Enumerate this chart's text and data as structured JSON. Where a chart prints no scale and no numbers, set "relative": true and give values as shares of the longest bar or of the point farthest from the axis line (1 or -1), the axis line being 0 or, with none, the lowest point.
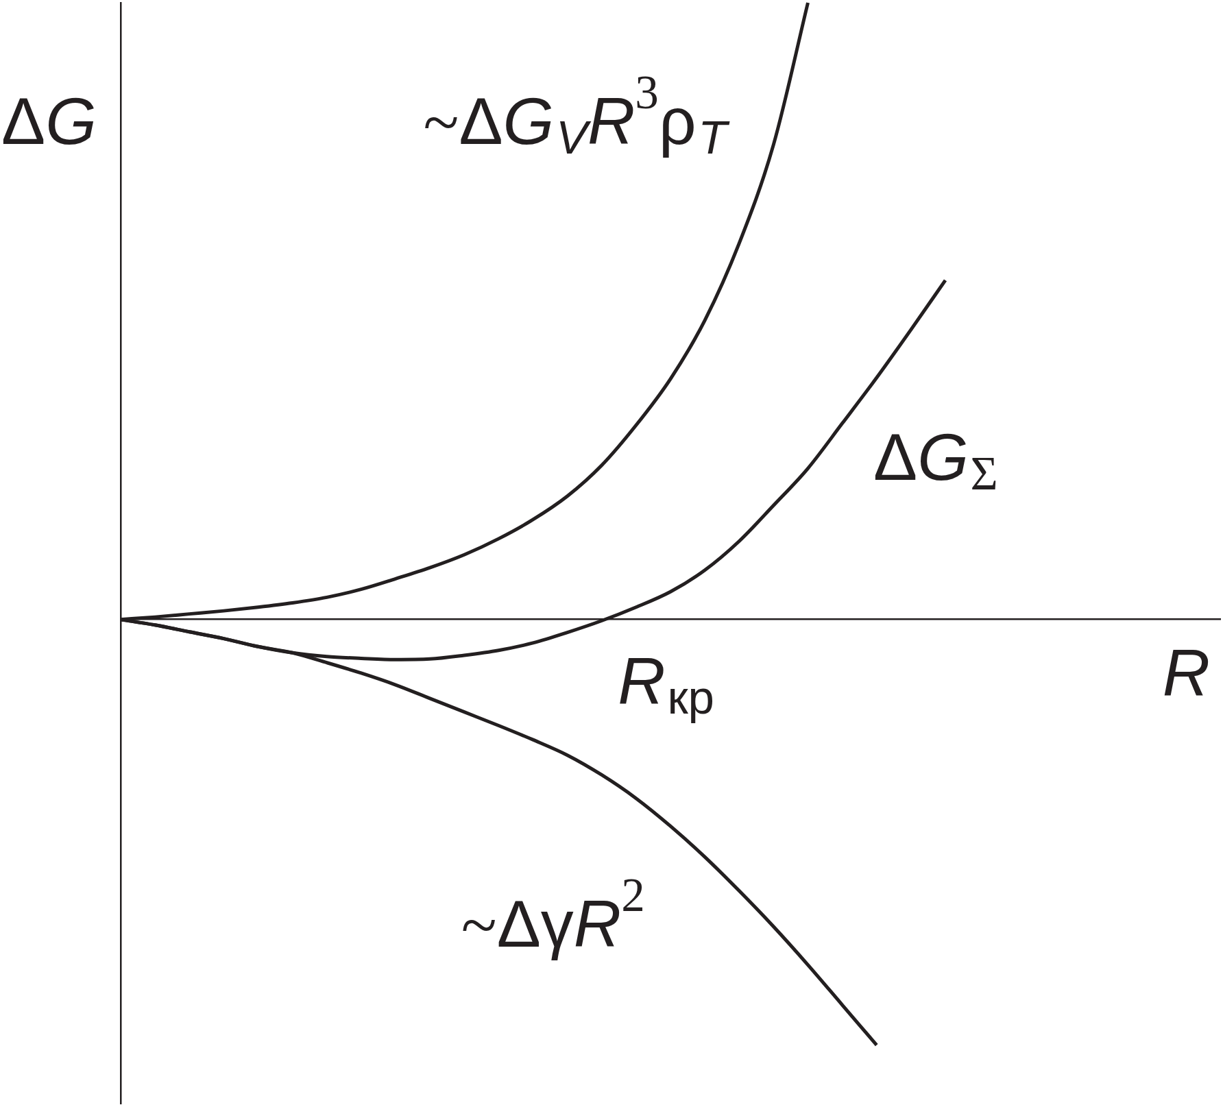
{
  "chart_data": {
    "type": "line",
    "relative": true,
    "xlabel": "R",
    "ylabel": "ΔG",
    "categories": [
      null,
      null,
      null,
      null,
      null,
      null,
      null,
      null,
      null,
      null,
      null,
      null,
      null,
      null,
      null,
      null,
      null,
      null,
      null,
      null,
      null,
      null,
      null,
      null,
      null,
      null,
      null,
      null,
      null,
      null,
      null,
      null,
      null
    ],
    "series": [
      {
        "name": "~ΔG$_{V}$R$^{3}$ρ$_{T}$",
        "color": "#231f20",
        "values": [
          0,
          0.004,
          0.009,
          0.014,
          0.02,
          0.027,
          0.036,
          0.049,
          0.066,
          0.084,
          0.105,
          0.131,
          0.162,
          0.2,
          0.25,
          0.315,
          0.39,
          0.485,
          0.61,
          0.77,
          1,
          null,
          null,
          null,
          null,
          null,
          null,
          null,
          null,
          null,
          null,
          null,
          null
        ]
      },
      {
        "name": "ΔG$_{Σ}$",
        "color": "#231f20",
        "values": [
          0,
          -0.009,
          -0.02,
          -0.031,
          -0.044,
          -0.054,
          -0.06,
          -0.063,
          -0.065,
          -0.064,
          -0.058,
          -0.05,
          -0.038,
          -0.021,
          -0.002,
          0.02,
          0.045,
          0.08,
          0.127,
          0.185,
          0.245,
          0.318,
          0.392,
          0.47,
          0.55,
          null,
          null,
          null,
          null,
          null,
          null,
          null,
          null
        ]
      },
      {
        "name": "~ΔγR$^{2}$",
        "color": "#231f20",
        "values": [
          0,
          -0.009,
          -0.02,
          -0.031,
          -0.044,
          -0.054,
          -0.07,
          -0.087,
          -0.106,
          -0.128,
          -0.15,
          -0.172,
          -0.195,
          -0.22,
          -0.252,
          -0.29,
          -0.335,
          -0.385,
          -0.44,
          -0.498,
          -0.56,
          -0.625,
          -0.69,
          null,
          null,
          null,
          null,
          null,
          null,
          null,
          null,
          null,
          null
        ]
      }
    ],
    "annotations": [
      "R$_{кр}$"
    ]
  }
}
